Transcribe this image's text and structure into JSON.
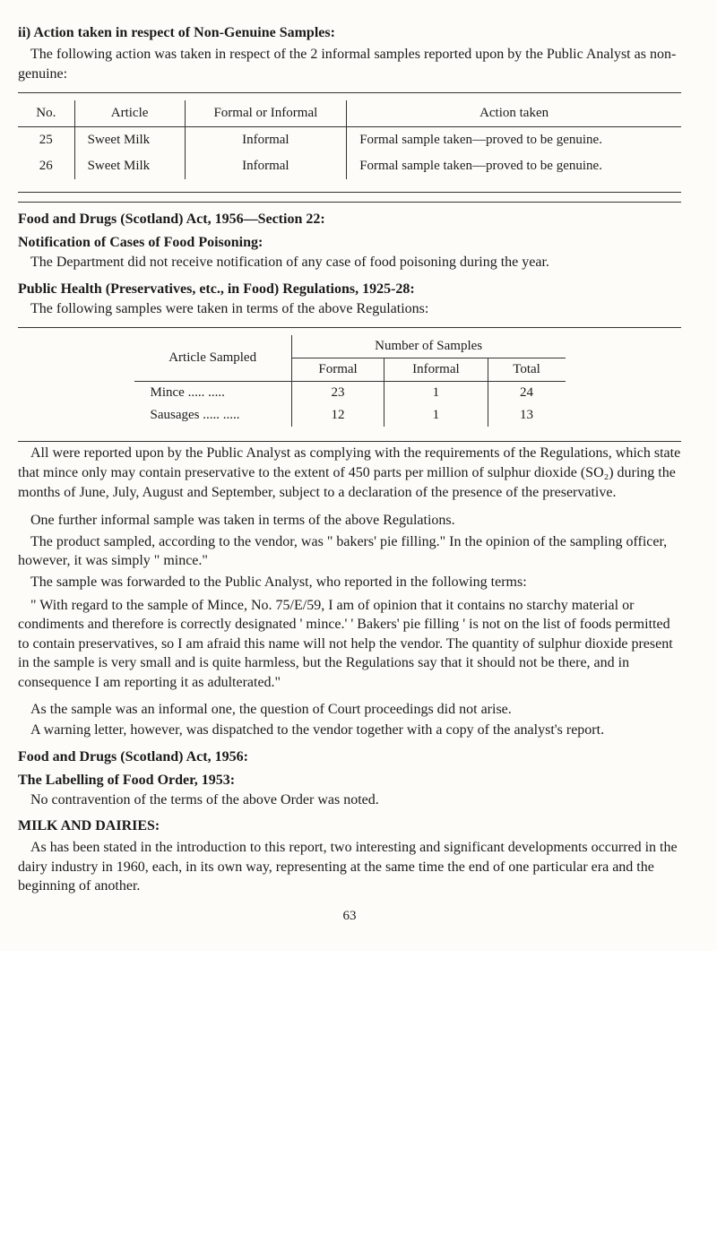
{
  "section_ii": {
    "heading": "ii) Action taken in respect of Non-Genuine Samples:",
    "para": "The following action was taken in respect of the 2 informal samples reported upon by the Public Analyst as non-genuine:"
  },
  "table1": {
    "headers": {
      "no": "No.",
      "article": "Article",
      "formal": "Formal or Informal",
      "action": "Action taken"
    },
    "rows": [
      {
        "no": "25",
        "article": "Sweet Milk",
        "formal": "Informal",
        "action": "Formal sample taken—proved to be genuine."
      },
      {
        "no": "26",
        "article": "Sweet Milk",
        "formal": "Informal",
        "action": "Formal sample taken—proved to be genuine."
      }
    ]
  },
  "food_drugs": {
    "h1": "Food and Drugs (Scotland) Act, 1956—Section 22:",
    "h2": "Notification of Cases of Food Poisoning:",
    "para": "The Department did not receive notification of any case of food poisoning during the year."
  },
  "pub_health": {
    "h": "Public Health (Preservatives, etc., in Food) Regulations, 1925-28:",
    "para": "The following samples were taken in terms of the above Regulations:"
  },
  "table2": {
    "left_header": "Article Sampled",
    "span_header": "Number of Samples",
    "cols": {
      "formal": "Formal",
      "informal": "Informal",
      "total": "Total"
    },
    "rows": [
      {
        "article": "Mince     .....     .....",
        "formal": "23",
        "informal": "1",
        "total": "24"
      },
      {
        "article": "Sausages  .....     .....",
        "formal": "12",
        "informal": "1",
        "total": "13"
      }
    ]
  },
  "para_all": "All were reported upon by the Public Analyst as complying with the requirements of the Regulations, which state that mince only may contain preservative to the extent of 450 parts per million of sulphur dioxide (SO₂) during the months of June, July, August and September, subject to a declaration of the presence of the preservative.",
  "para_one": "One further informal sample was taken in terms of the above Regulations.",
  "para_prod": "The product sampled, according to the vendor, was \" bakers' pie filling.\"  In the opinion of the sampling officer, however, it was simply \" mince.\"",
  "para_sample": "The sample was forwarded to the Public Analyst, who reported in the following terms:",
  "quote": "\" With regard to the sample of Mince, No. 75/E/59, I am of opinion that it contains no starchy material or condiments and therefore is correctly designated ' mince.'  ' Bakers' pie filling ' is not on the list of foods permitted to contain preservatives, so I am afraid this name will not help the vendor.  The quantity of sulphur dioxide present in the sample is very small and is quite harmless, but the Regulations say that it should not be there, and in consequence I am reporting it as adulterated.\"",
  "para_as": "As the sample was an informal one, the question of Court proceedings did not arise.",
  "para_warn": "A warning letter, however, was dispatched to the vendor together with a copy of the analyst's report.",
  "fd_act": {
    "h1": "Food and Drugs (Scotland) Act, 1956:",
    "h2": "The Labelling of Food Order, 1953:",
    "para": "No contravention of the terms of the above Order was noted."
  },
  "milk": {
    "h": "MILK AND DAIRIES:",
    "para": "As has been stated in the introduction to this report, two interesting and significant developments occurred in the dairy industry in 1960, each, in its own way, representing at the same time the end of one particular era and the beginning of another."
  },
  "page_number": "63"
}
